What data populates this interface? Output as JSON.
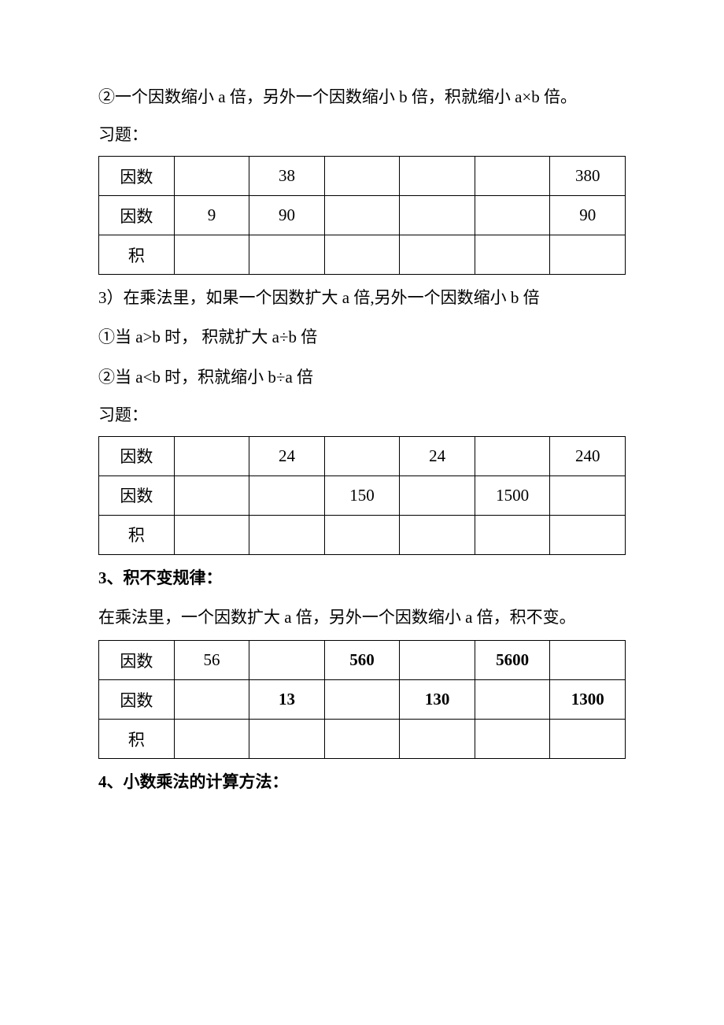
{
  "p1": "②一个因数缩小 a 倍，另外一个因数缩小 b 倍，积就缩小 a×b 倍。",
  "p2": "习题：",
  "table1": {
    "row_labels": [
      "因数",
      "因数",
      "积"
    ],
    "rows": [
      [
        "",
        "38",
        "",
        "",
        "",
        "380"
      ],
      [
        "9",
        "90",
        "",
        "",
        "",
        "90"
      ],
      [
        "",
        "",
        "",
        "",
        "",
        ""
      ]
    ]
  },
  "p3": "3）在乘法里，如果一个因数扩大 a 倍,另外一个因数缩小 b 倍",
  "p4": "①当 a>b 时， 积就扩大 a÷b 倍",
  "p5": "②当 a<b 时，积就缩小 b÷a 倍",
  "p6": "习题：",
  "table2": {
    "row_labels": [
      "因数",
      "因数",
      "积"
    ],
    "rows": [
      [
        "",
        "24",
        "",
        "24",
        "",
        "240"
      ],
      [
        "",
        "",
        "150",
        "",
        "1500",
        ""
      ],
      [
        "",
        "",
        "",
        "",
        "",
        ""
      ]
    ]
  },
  "p7": "3、积不变规律：",
  "p8": " 在乘法里，一个因数扩大 a 倍，另外一个因数缩小 a 倍，积不变。",
  "table3": {
    "row_labels": [
      "因数",
      "因数",
      "积"
    ],
    "rows": [
      [
        "56",
        "",
        "560",
        "",
        "5600",
        ""
      ],
      [
        "",
        "13",
        "",
        "130",
        "",
        "1300"
      ],
      [
        "",
        "",
        "",
        "",
        "",
        ""
      ]
    ],
    "bold_cells": [
      [
        0,
        2
      ],
      [
        0,
        4
      ],
      [
        1,
        1
      ],
      [
        1,
        3
      ],
      [
        1,
        5
      ]
    ]
  },
  "p9": "4、小数乘法的计算方法："
}
